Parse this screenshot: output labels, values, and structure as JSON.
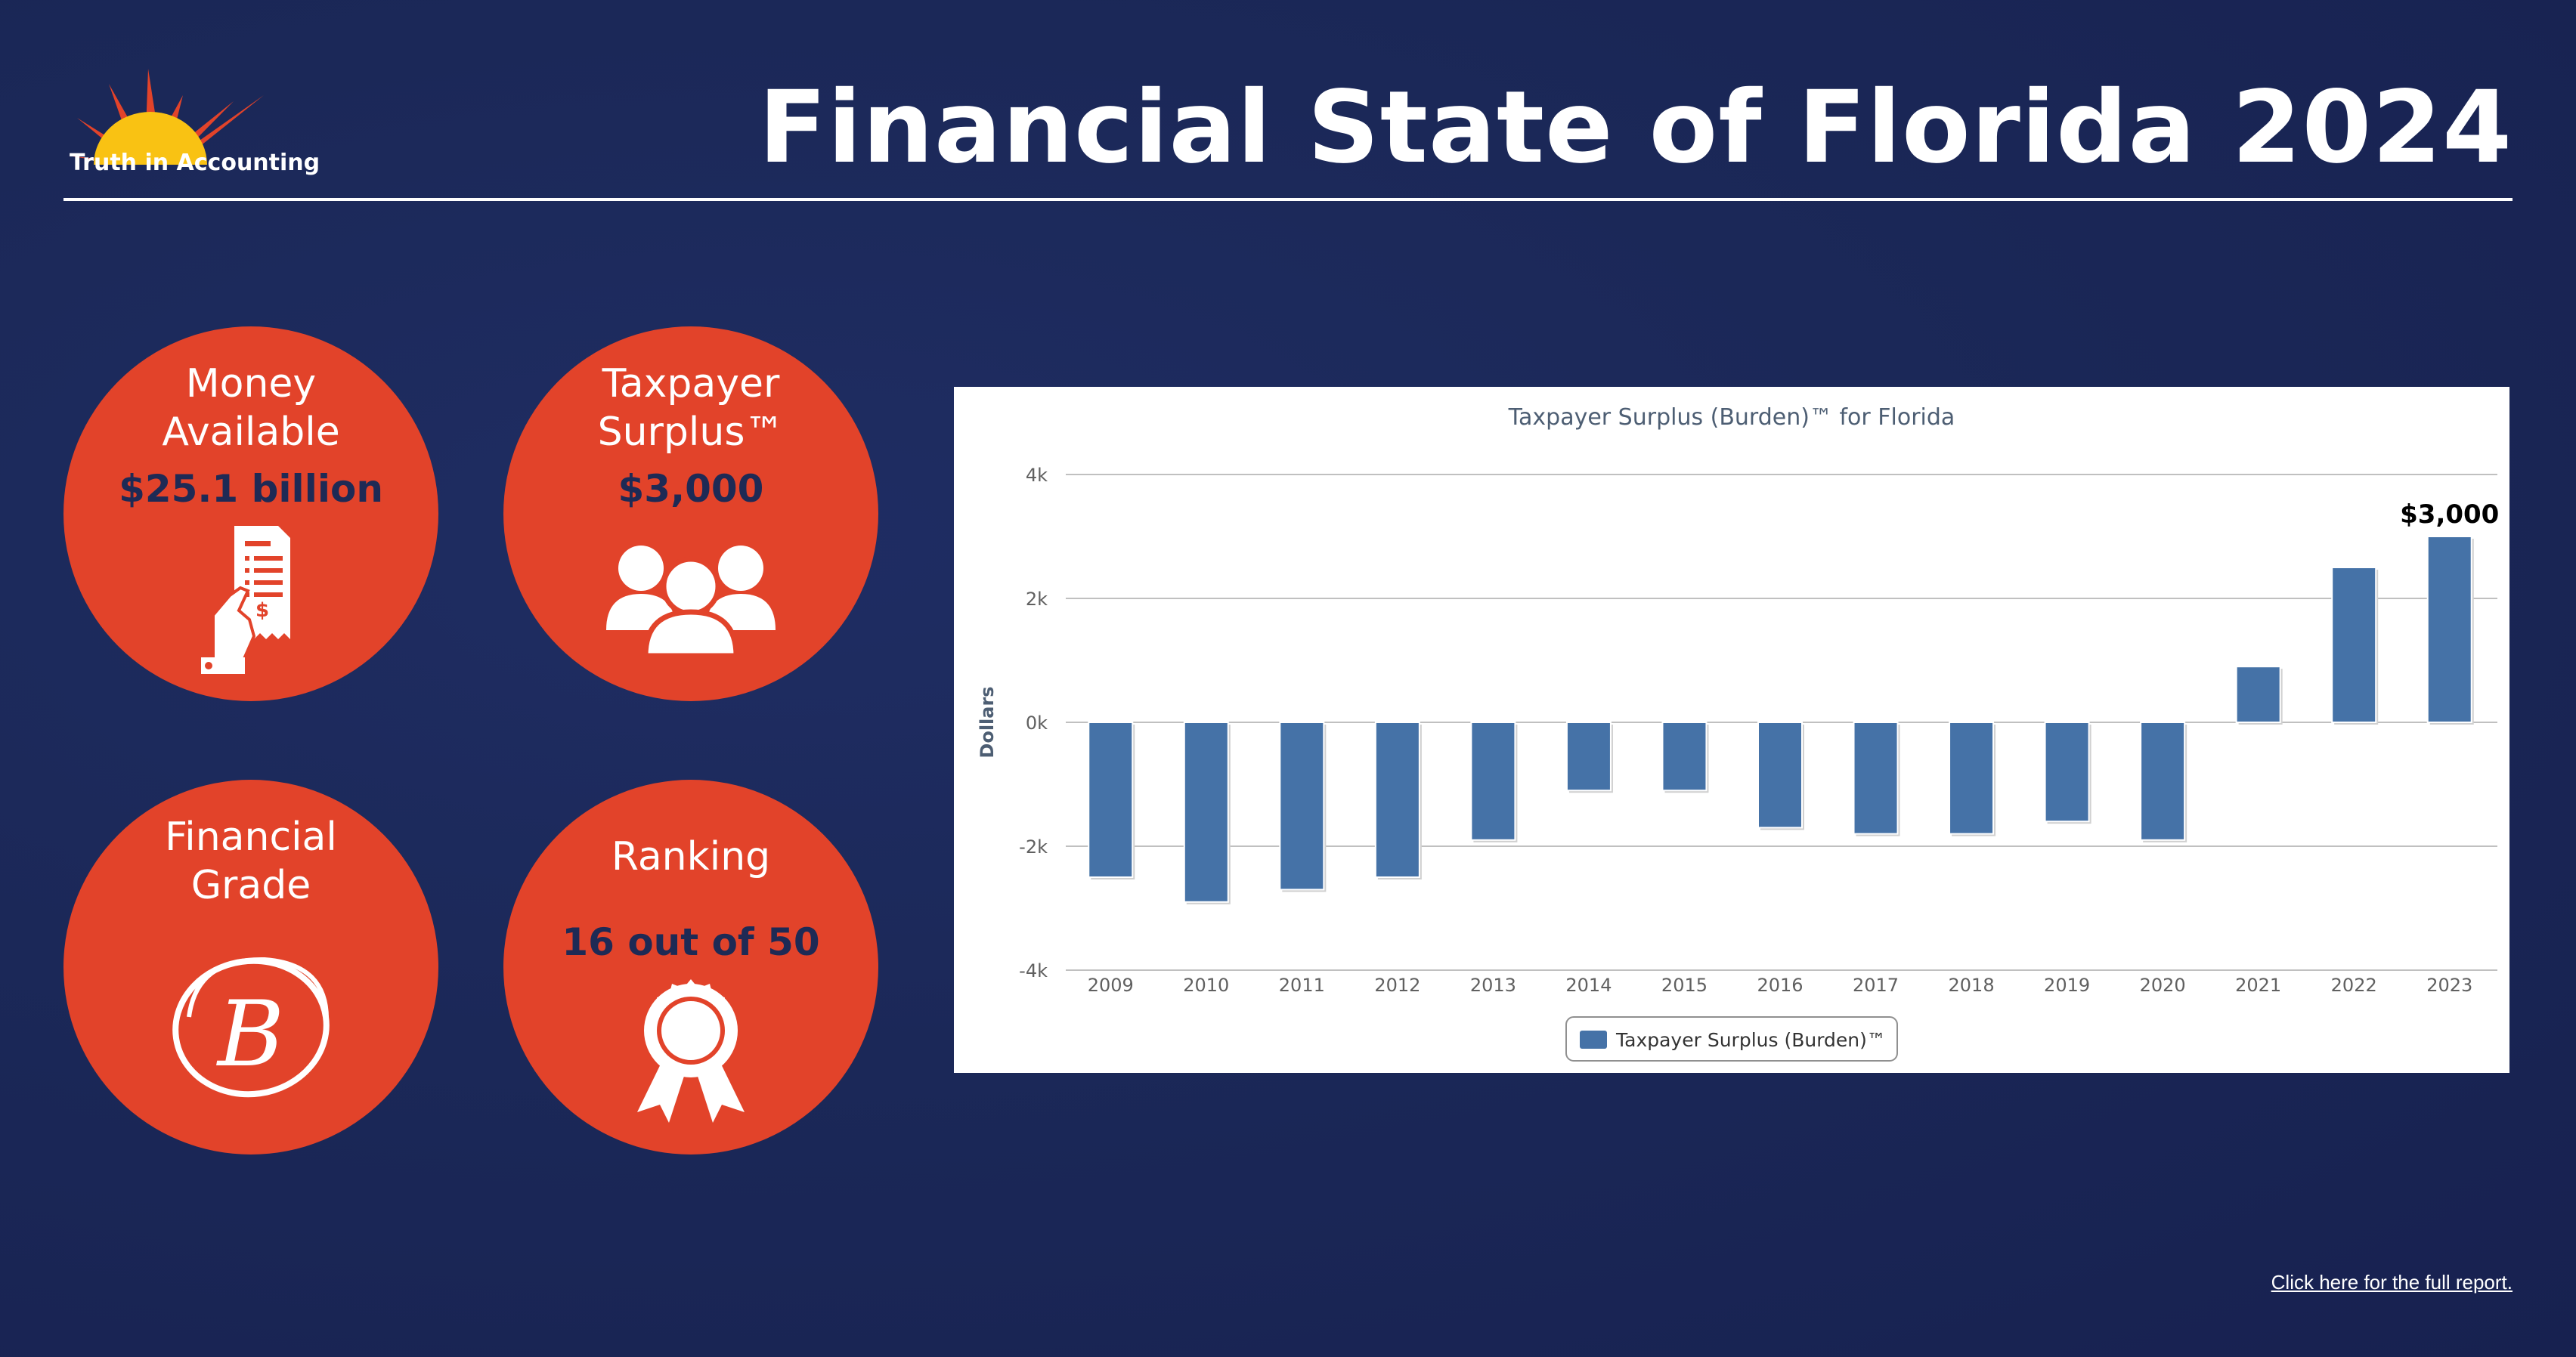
{
  "header": {
    "logo_text": "Truth in Accounting",
    "title": "Financial State of Florida 2024",
    "logo_icon": "sun-logo-icon",
    "colors": {
      "sun": "#f9c213",
      "rays": "#e2432a"
    }
  },
  "metrics": {
    "money_available": {
      "label_line1": "Money",
      "label_line2": "Available",
      "value": "$25.1 billion",
      "icon": "receipt-hand-icon"
    },
    "taxpayer_surplus": {
      "label_line1": "Taxpayer",
      "label_line2": "Surplus™",
      "value": "$3,000",
      "icon": "people-group-icon"
    },
    "financial_grade": {
      "label_line1": "Financial",
      "label_line2": "Grade",
      "grade": "B",
      "icon": "grade-b-icon"
    },
    "ranking": {
      "label": "Ranking",
      "value": "16 out of 50",
      "icon": "award-ribbon-icon"
    },
    "colors": {
      "circle": "#e2432a",
      "value_text": "#1e2a55"
    }
  },
  "chart_data": {
    "type": "bar",
    "title": "Taxpayer Surplus (Burden)™ for Florida",
    "xlabel": "",
    "ylabel": "Dollars",
    "categories": [
      "2009",
      "2010",
      "2011",
      "2012",
      "2013",
      "2014",
      "2015",
      "2016",
      "2017",
      "2018",
      "2019",
      "2020",
      "2021",
      "2022",
      "2023"
    ],
    "series": [
      {
        "name": "Taxpayer Surplus (Burden)™",
        "values": [
          -2500,
          -2900,
          -2700,
          -2500,
          -1900,
          -1100,
          -1100,
          -1700,
          -1800,
          -1800,
          -1600,
          -1900,
          900,
          2500,
          3000
        ]
      }
    ],
    "ylim": [
      -4000,
      4000
    ],
    "yticks": [
      {
        "value": 4000,
        "label": "4k"
      },
      {
        "value": 2000,
        "label": "2k"
      },
      {
        "value": 0,
        "label": "0k"
      },
      {
        "value": -2000,
        "label": "-2k"
      },
      {
        "value": -4000,
        "label": "-4k"
      }
    ],
    "annotation": {
      "category": "2023",
      "text": "$3,000"
    },
    "legend_position": "bottom-center",
    "grid": true,
    "colors": {
      "bar": "#4572a7",
      "grid": "#c0c0c0",
      "title": "#4d5e73"
    }
  },
  "footer": {
    "link_text": "Click here for the full report."
  }
}
